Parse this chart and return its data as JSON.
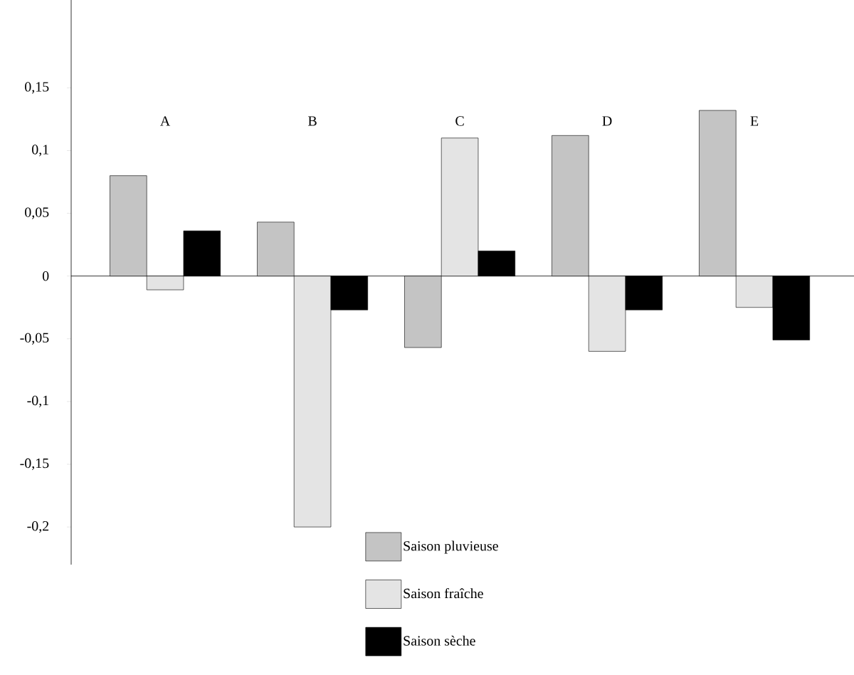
{
  "chart_data": {
    "type": "bar",
    "categories": [
      "A",
      "B",
      "C",
      "D",
      "E"
    ],
    "series": [
      {
        "name": "Saison pluvieuse",
        "color": "#c4c4c4",
        "values": [
          0.08,
          0.043,
          -0.057,
          0.112,
          0.132
        ]
      },
      {
        "name": "Saison fraîche",
        "color": "#e4e4e4",
        "values": [
          -0.011,
          -0.2,
          0.11,
          -0.06,
          -0.025
        ]
      },
      {
        "name": "Saison sèche",
        "color": "#000000",
        "values": [
          0.036,
          -0.027,
          0.02,
          -0.027,
          -0.051
        ]
      }
    ],
    "ylim": [
      -0.23,
      0.22
    ],
    "yticks": [
      {
        "value": -0.2,
        "label": "-0,2"
      },
      {
        "value": -0.15,
        "label": "-0,15"
      },
      {
        "value": -0.1,
        "label": "-0,1"
      },
      {
        "value": -0.05,
        "label": "-0,05"
      },
      0,
      {
        "value": 0.05,
        "label": "0,05"
      },
      {
        "value": 0.1,
        "label": "0,1"
      },
      {
        "value": 0.15,
        "label": "0,15"
      }
    ],
    "legend": "bottom"
  }
}
